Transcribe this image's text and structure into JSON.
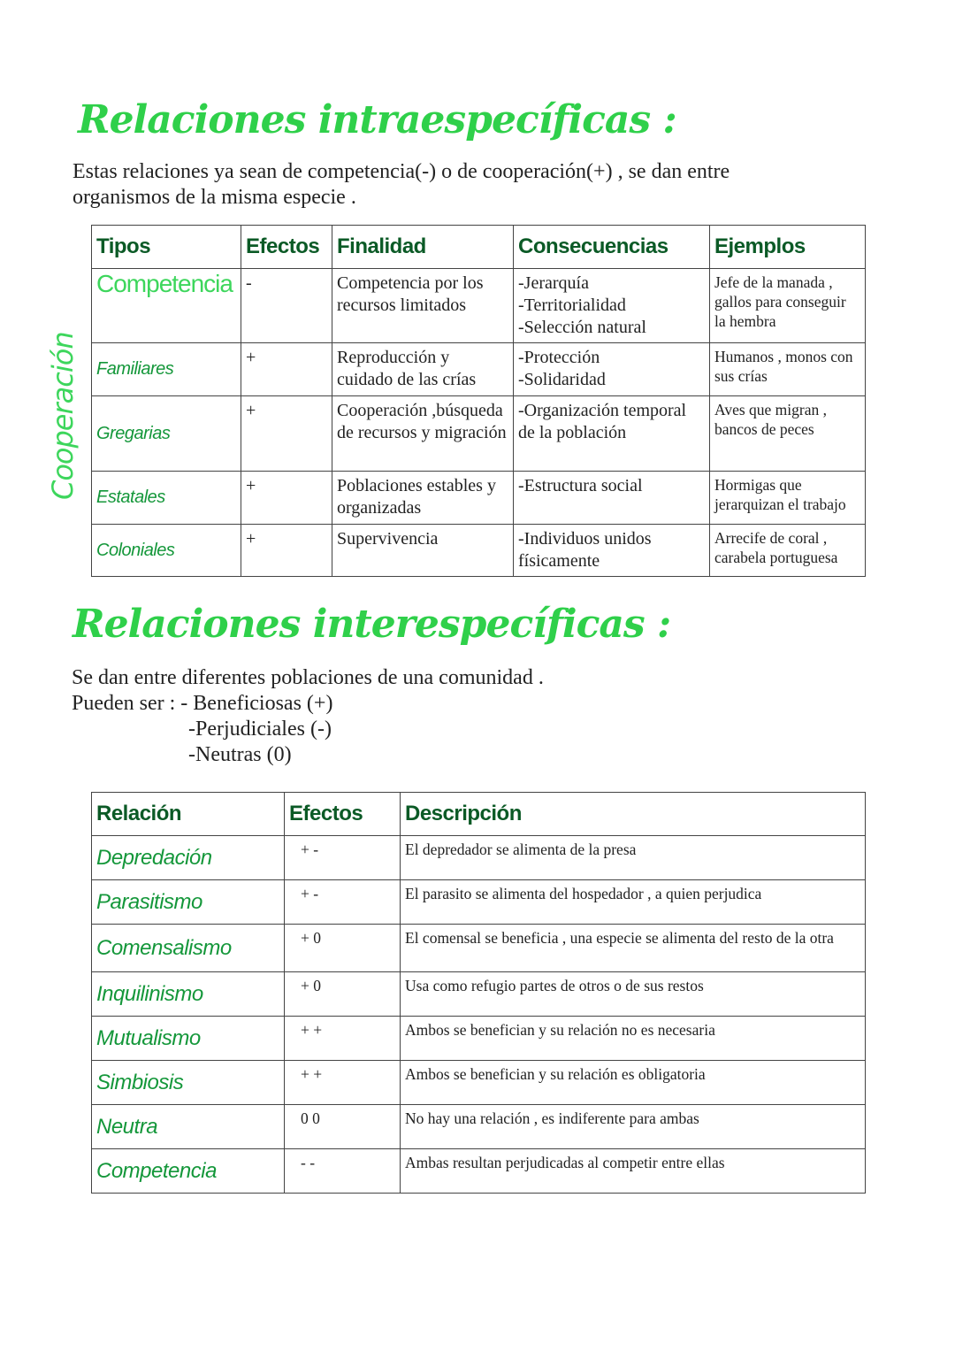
{
  "section1": {
    "title": "Relaciones intraespecíficas :",
    "intro_line1": "Estas relaciones ya sean de competencia(-) o de cooperación(+) , se dan entre",
    "intro_line2": "organismos de la misma especie .",
    "side_label": "Cooperación",
    "headers": [
      "Tipos",
      "Efectos",
      "Finalidad",
      "Consecuencias",
      "Ejemplos"
    ],
    "rows": [
      {
        "tipo": "Competencia",
        "efecto": "-",
        "finalidad": "Competencia por los recursos limitados",
        "consecuencias": "-Jerarquía\n-Territorialidad\n-Selección natural",
        "ejemplos": "Jefe de la manada , gallos para conseguir la hembra"
      },
      {
        "tipo": "Familiares",
        "efecto": "+",
        "finalidad": "Reproducción y cuidado de las crías",
        "consecuencias": "-Protección\n-Solidaridad",
        "ejemplos": "Humanos , monos con sus crías"
      },
      {
        "tipo": "Gregarias",
        "efecto": "+",
        "finalidad": "Cooperación ,búsqueda de recursos y migración",
        "consecuencias": "-Organización temporal de la población",
        "ejemplos": "Aves que migran , bancos de peces"
      },
      {
        "tipo": "Estatales",
        "efecto": "+",
        "finalidad": "Poblaciones estables y organizadas",
        "consecuencias": "-Estructura social",
        "ejemplos": "Hormigas que jerarquizan el trabajo"
      },
      {
        "tipo": "Coloniales",
        "efecto": "+",
        "finalidad": "Supervivencia",
        "consecuencias": "-Individuos unidos físicamente",
        "ejemplos": "Arrecife de coral , carabela portuguesa"
      }
    ]
  },
  "section2": {
    "title": "Relaciones interespecíficas :",
    "intro_line1": "Se dan entre diferentes poblaciones de una comunidad .",
    "intro_line2": "Pueden ser : - Beneficiosas (+)",
    "intro_line3": "-Perjudiciales (-)",
    "intro_line4": "-Neutras (0)",
    "headers": [
      "Relación",
      "Efectos",
      "Descripción"
    ],
    "rows": [
      {
        "relacion": "Depredación",
        "efecto": "+ -",
        "descripcion": "El depredador se alimenta de la presa"
      },
      {
        "relacion": "Parasitismo",
        "efecto": "+ -",
        "descripcion": "El parasito se alimenta del hospedador , a quien perjudica"
      },
      {
        "relacion": "Comensalismo",
        "efecto": "+ 0",
        "descripcion": "El comensal se beneficia , una especie se alimenta del resto de la otra"
      },
      {
        "relacion": "Inquilinismo",
        "efecto": "+ 0",
        "descripcion": "Usa como refugio partes de otros o de sus restos"
      },
      {
        "relacion": "Mutualismo",
        "efecto": "+ +",
        "descripcion": "Ambos se benefician y su relación no es necesaria"
      },
      {
        "relacion": "Simbiosis",
        "efecto": "+ +",
        "descripcion": "Ambos se benefician y su relación es obligatoria"
      },
      {
        "relacion": "Neutra",
        "efecto": "0 0",
        "descripcion": "No hay una relación , es indiferente para ambas"
      },
      {
        "relacion": "Competencia",
        "efecto": "- -",
        "descripcion": "Ambas resultan perjudicadas al competir entre ellas"
      }
    ]
  },
  "colors": {
    "title": "#2fd04a",
    "header": "#0b5a26",
    "row_name": "#14973a",
    "highlight": "#3dd65c"
  }
}
